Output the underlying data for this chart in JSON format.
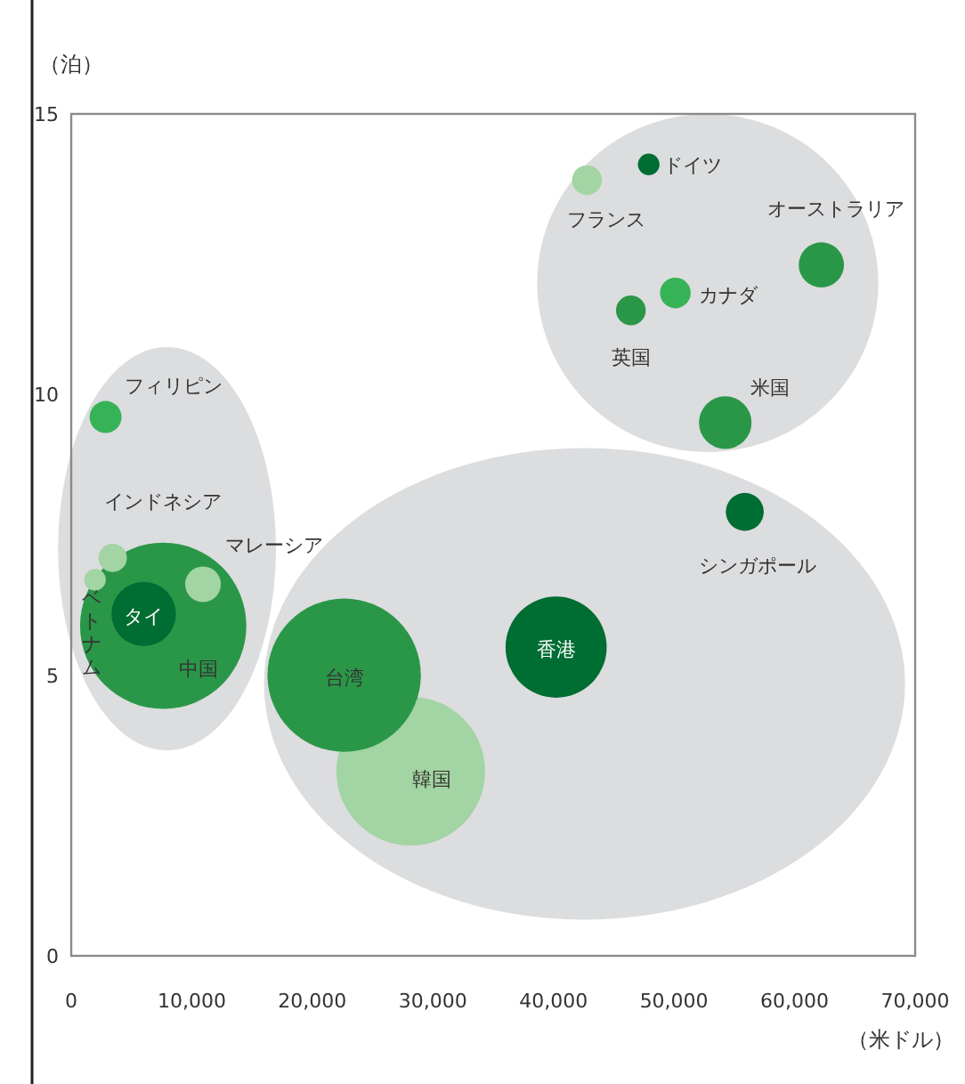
{
  "chart_data": {
    "type": "bubble",
    "xlabel": "（米ドル）",
    "ylabel": "（泊）",
    "xlim": [
      0,
      70000
    ],
    "ylim": [
      0,
      15
    ],
    "xticks": [
      0,
      {
        "value": 10000,
        "label": "10,000"
      },
      {
        "value": 20000,
        "label": "20,000"
      },
      {
        "value": 30000,
        "label": "30,000"
      },
      {
        "value": 40000,
        "label": "40,000"
      },
      {
        "value": 50000,
        "label": "50,000"
      },
      {
        "value": 60000,
        "label": "60,000"
      },
      {
        "value": 70000,
        "label": "70,000"
      }
    ],
    "yticks": [
      0,
      5,
      10,
      15
    ],
    "grid": false,
    "x": [
      7630,
      28160,
      22640,
      40220,
      6010,
      10930,
      3440,
      1970,
      2850,
      55870,
      54250,
      62220,
      50110,
      46420,
      42780,
      47900
    ],
    "values": [
      5.88,
      3.29,
      5.0,
      5.5,
      6.09,
      6.62,
      7.09,
      6.7,
      9.6,
      7.91,
      9.5,
      12.31,
      11.81,
      11.5,
      13.82,
      14.1
    ],
    "sizes": [
      1,
      0.8,
      0.85,
      0.37,
      0.15,
      0.046,
      0.029,
      0.017,
      0.037,
      0.052,
      0.1,
      0.074,
      0.034,
      0.032,
      0.032,
      0.017
    ],
    "colors": [
      "#2a9748",
      "#a3d4a3",
      "#2a9748",
      "#006d32",
      "#006d32",
      "#a3d4a3",
      "#a3d4a3",
      "#a3d4a3",
      "#37b357",
      "#006d32",
      "#2a9748",
      "#2a9748",
      "#37b357",
      "#2a9748",
      "#a3d4a3",
      "#006d32"
    ],
    "annotations": [
      {
        "text": "中国",
        "x": 7630,
        "y": 5.88
      },
      {
        "text": "韓国",
        "x": 28160,
        "y": 3.29
      },
      {
        "text": "台湾",
        "x": 22640,
        "y": 5.0
      },
      {
        "text": "香港",
        "x": 40220,
        "y": 5.5
      },
      {
        "text": "タイ",
        "x": 6010,
        "y": 6.09
      },
      {
        "text": "マレーシア",
        "x": 10930,
        "y": 6.62
      },
      {
        "text": "インドネシア",
        "x": 3440,
        "y": 7.09
      },
      {
        "text": "ベトナム",
        "x": 1970,
        "y": 6.7
      },
      {
        "text": "フィリピン",
        "x": 2850,
        "y": 9.6
      },
      {
        "text": "シンガポール",
        "x": 55870,
        "y": 7.91
      },
      {
        "text": "米国",
        "x": 54250,
        "y": 9.5
      },
      {
        "text": "オーストラリア",
        "x": 62220,
        "y": 12.31
      },
      {
        "text": "カナダ",
        "x": 50110,
        "y": 11.81
      },
      {
        "text": "英国",
        "x": 46420,
        "y": 11.5
      },
      {
        "text": "フランス",
        "x": 42780,
        "y": 13.82
      },
      {
        "text": "ドイツ",
        "x": 47900,
        "y": 14.1
      }
    ]
  }
}
